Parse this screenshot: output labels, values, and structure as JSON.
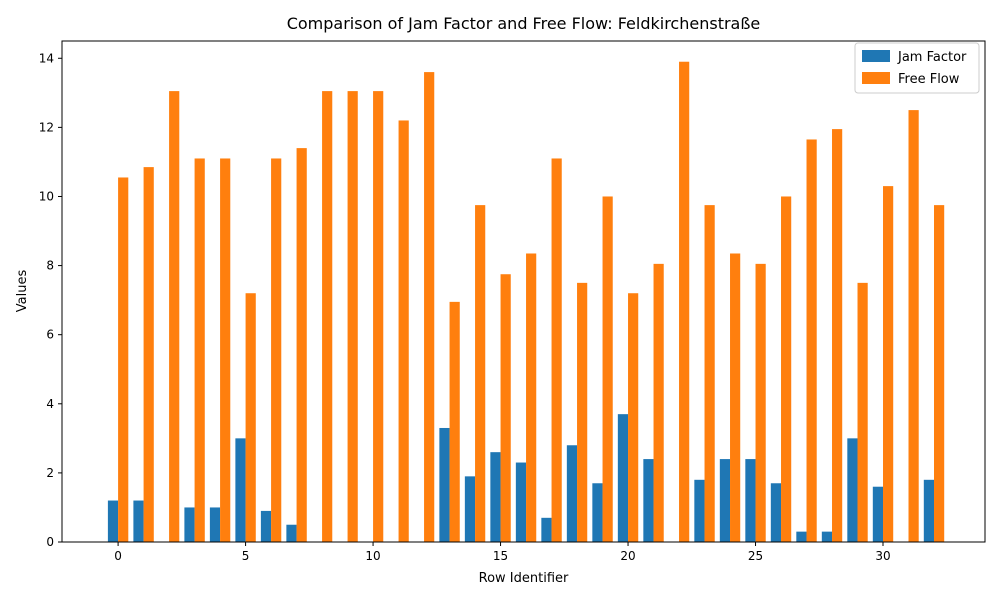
{
  "chart_data": {
    "type": "bar",
    "title": "Comparison of Jam Factor and Free Flow: Feldkirchenstraße",
    "xlabel": "Row Identifier",
    "ylabel": "Values",
    "xlim": [
      -2.2,
      34
    ],
    "ylim": [
      0,
      14.5
    ],
    "xticks": [
      0,
      5,
      10,
      15,
      20,
      25,
      30
    ],
    "yticks": [
      0,
      2,
      4,
      6,
      8,
      10,
      12,
      14
    ],
    "x": [
      0,
      1,
      2,
      3,
      4,
      5,
      6,
      7,
      8,
      9,
      10,
      11,
      12,
      13,
      14,
      15,
      16,
      17,
      18,
      19,
      20,
      21,
      22,
      23,
      24,
      25,
      26,
      27,
      28,
      29,
      30,
      31,
      32
    ],
    "grid": false,
    "legend_position": "top-right",
    "series": [
      {
        "name": "Jam Factor",
        "color": "#1f77b4",
        "values": [
          1.2,
          1.2,
          0,
          1.0,
          1.0,
          3.0,
          0.9,
          0.5,
          0,
          0,
          0,
          0,
          0,
          3.3,
          1.9,
          2.6,
          2.3,
          0.7,
          2.8,
          1.7,
          3.7,
          2.4,
          0,
          1.8,
          2.4,
          2.4,
          1.7,
          0.3,
          0.3,
          3.0,
          1.6,
          0,
          1.8
        ]
      },
      {
        "name": "Free Flow",
        "color": "#ff7f0e",
        "values": [
          10.55,
          10.85,
          13.05,
          11.1,
          11.1,
          7.2,
          11.1,
          11.4,
          13.05,
          13.05,
          13.05,
          12.2,
          13.6,
          6.95,
          9.75,
          7.75,
          8.35,
          11.1,
          7.5,
          10.0,
          7.2,
          8.05,
          13.9,
          9.75,
          8.35,
          8.05,
          10.0,
          11.65,
          11.95,
          7.5,
          10.3,
          12.5,
          9.75
        ]
      }
    ]
  }
}
